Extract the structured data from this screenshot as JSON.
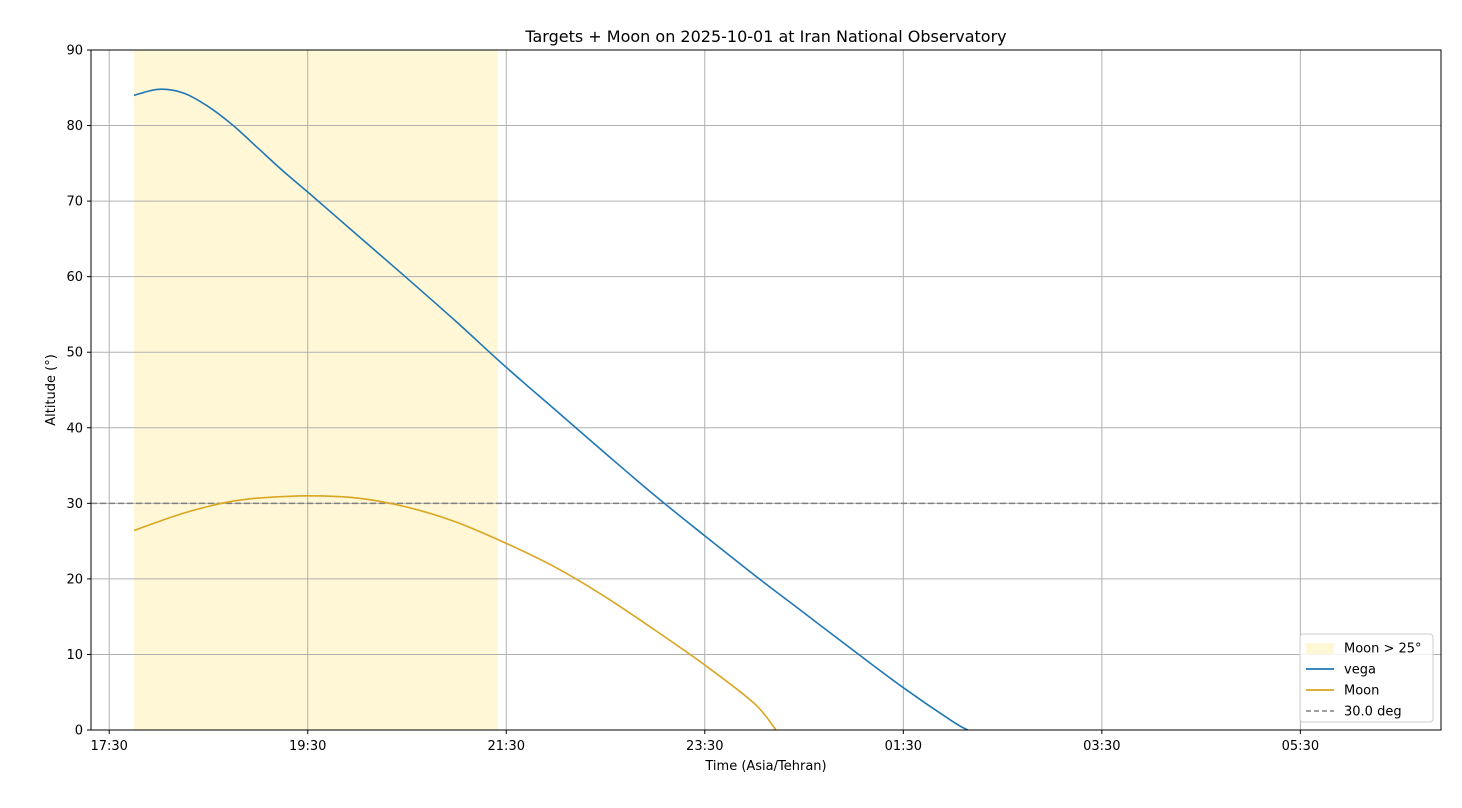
{
  "chart_data": {
    "type": "line",
    "title": "Targets + Moon on 2025-10-01 at Iran National Observatory",
    "xlabel": "Time (Asia/Tehran)",
    "ylabel": "Altitude (°)",
    "xlim": [
      "2025-10-01 17:19",
      "2025-10-02 06:55"
    ],
    "ylim": [
      0,
      90
    ],
    "x_ticks": [
      "17:30",
      "19:30",
      "21:30",
      "23:30",
      "01:30",
      "03:30",
      "05:30"
    ],
    "y_ticks": [
      0,
      10,
      20,
      30,
      40,
      50,
      60,
      70,
      80,
      90
    ],
    "grid": true,
    "legend_position": "lower-right",
    "shaded_regions": [
      {
        "label": "Moon > 25°",
        "x_start": "2025-10-01 17:45",
        "x_end": "2025-10-01 21:25",
        "color": "#fff7d6"
      }
    ],
    "series": [
      {
        "name": "vega",
        "color": "#1f77b4",
        "points": [
          [
            "2025-10-01 17:45",
            84.0
          ],
          [
            "2025-10-01 18:00",
            84.8
          ],
          [
            "2025-10-01 18:15",
            84.3
          ],
          [
            "2025-10-01 18:30",
            82.5
          ],
          [
            "2025-10-01 18:45",
            80.0
          ],
          [
            "2025-10-01 19:00",
            77.0
          ],
          [
            "2025-10-01 19:15",
            74.0
          ],
          [
            "2025-10-01 19:30",
            71.2
          ],
          [
            "2025-10-01 20:00",
            65.5
          ],
          [
            "2025-10-01 20:30",
            59.8
          ],
          [
            "2025-10-01 21:00",
            54.0
          ],
          [
            "2025-10-01 21:30",
            48.0
          ],
          [
            "2025-10-01 22:00",
            42.3
          ],
          [
            "2025-10-01 22:30",
            36.6
          ],
          [
            "2025-10-01 23:00",
            31.0
          ],
          [
            "2025-10-01 23:30",
            25.7
          ],
          [
            "2025-10-02 00:00",
            20.5
          ],
          [
            "2025-10-02 00:30",
            15.5
          ],
          [
            "2025-10-02 01:00",
            10.5
          ],
          [
            "2025-10-02 01:30",
            5.6
          ],
          [
            "2025-10-02 02:00",
            1.1
          ],
          [
            "2025-10-02 02:09",
            0.0
          ]
        ]
      },
      {
        "name": "Moon",
        "color": "#daa520",
        "points": [
          [
            "2025-10-01 17:45",
            26.4
          ],
          [
            "2025-10-01 18:00",
            27.6
          ],
          [
            "2025-10-01 18:15",
            28.7
          ],
          [
            "2025-10-01 18:30",
            29.6
          ],
          [
            "2025-10-01 18:45",
            30.3
          ],
          [
            "2025-10-01 19:00",
            30.7
          ],
          [
            "2025-10-01 19:30",
            31.0
          ],
          [
            "2025-10-01 20:00",
            30.7
          ],
          [
            "2025-10-01 20:30",
            29.5
          ],
          [
            "2025-10-01 21:00",
            27.5
          ],
          [
            "2025-10-01 21:30",
            24.7
          ],
          [
            "2025-10-01 22:00",
            21.5
          ],
          [
            "2025-10-01 22:30",
            17.6
          ],
          [
            "2025-10-01 23:00",
            13.2
          ],
          [
            "2025-10-01 23:30",
            8.6
          ],
          [
            "2025-10-02 00:00",
            3.5
          ],
          [
            "2025-10-02 00:13",
            0.0
          ]
        ]
      }
    ],
    "reference_lines": [
      {
        "label": "30.0 deg",
        "y": 30,
        "color": "#808080",
        "style": "dashed"
      }
    ],
    "legend_entries": [
      "Moon > 25°",
      "vega",
      "Moon",
      "30.0 deg"
    ]
  }
}
